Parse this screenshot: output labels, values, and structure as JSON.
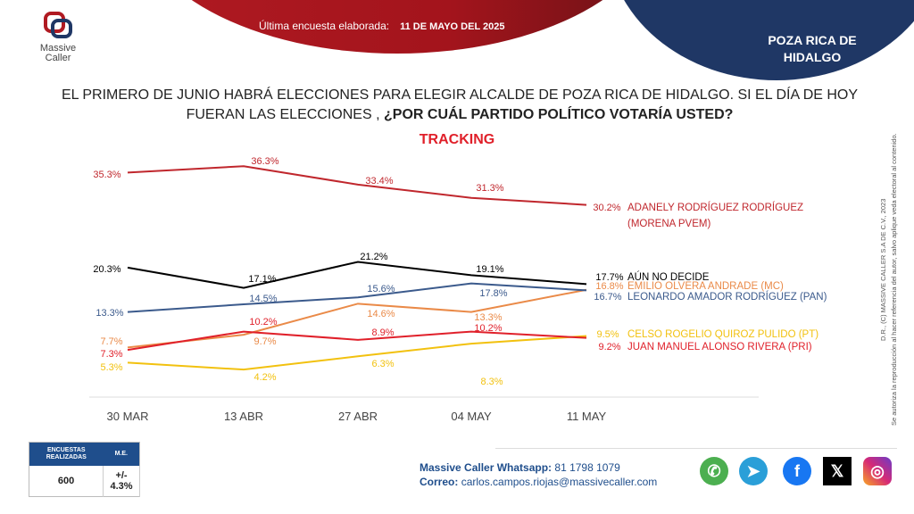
{
  "header": {
    "last_survey_label": "Última encuesta elaborada:",
    "last_survey_date": "11 DE MAYO DEL 2025",
    "city": "POZA RICA DE HIDALGO",
    "logo_text": [
      "Massive",
      "Caller"
    ]
  },
  "question": {
    "text": "EL PRIMERO DE JUNIO HABRÁ ELECCIONES PARA ELEGIR ALCALDE DE POZA RICA DE HIDALGO. SI EL DÍA DE HOY FUERAN LAS ELECCIONES ,",
    "emphasis": "¿POR CUÁL PARTIDO POLÍTICO VOTARÍA USTED?"
  },
  "chart_data": {
    "type": "line",
    "title": "TRACKING",
    "categories": [
      "30 MAR",
      "13 ABR",
      "27 ABR",
      "04 MAY",
      "11 MAY"
    ],
    "ylim": [
      0,
      40
    ],
    "grid": false,
    "legend": "right, end-of-line labels",
    "series": [
      {
        "name": "ADANELY RODRÍGUEZ RODRÍGUEZ (MORENA PVEM)",
        "color": "#c0272d",
        "values": [
          35.3,
          36.3,
          33.4,
          31.3,
          30.2
        ]
      },
      {
        "name": "AÚN NO DECIDE",
        "color": "#000000",
        "values": [
          20.3,
          17.1,
          21.2,
          19.1,
          17.7
        ]
      },
      {
        "name": "EMILIO OLVERA ANDRADE (MC)",
        "color": "#ea8a48",
        "values": [
          7.7,
          9.7,
          14.6,
          13.3,
          16.8
        ]
      },
      {
        "name": "LEONARDO AMADOR RODRÍGUEZ (PAN)",
        "color": "#3b5a8c",
        "values": [
          13.3,
          14.5,
          15.6,
          17.8,
          16.7
        ]
      },
      {
        "name": "CELSO ROGELIO QUIROZ PULIDO (PT)",
        "color": "#f2c10f",
        "values": [
          5.3,
          4.2,
          6.3,
          8.3,
          9.5
        ]
      },
      {
        "name": "JUAN MANUEL ALONSO RIVERA (PRI)",
        "color": "#e0202a",
        "values": [
          7.3,
          10.2,
          8.9,
          10.2,
          9.2
        ]
      }
    ]
  },
  "sidenote": {
    "line1": "D.R., (C) MASSIVE CALLER S.A DE C.V., 2023",
    "line2": "Se autoriza la reproducción al hacer referencia del autor, salvo aplique veda electoral al contenido."
  },
  "stats": {
    "h1": "ENCUESTAS REALIZADAS",
    "h2": "M.E.",
    "surveys": "600",
    "margin": "+/- 4.3%"
  },
  "contact": {
    "wa_label": "Massive Caller Whatsapp:",
    "wa": "81 1798 1079",
    "mail_label": "Correo:",
    "mail": "carlos.campos.riojas@massivecaller.com"
  },
  "social": [
    {
      "icon": "whatsapp-icon",
      "color": "#4caf50"
    },
    {
      "icon": "telegram-icon",
      "color": "#2a9fd8"
    },
    {
      "icon": "facebook-icon",
      "color": "#1877f2"
    },
    {
      "icon": "x-icon",
      "color": "#000000"
    },
    {
      "icon": "instagram-icon",
      "color": "#d62976"
    }
  ]
}
